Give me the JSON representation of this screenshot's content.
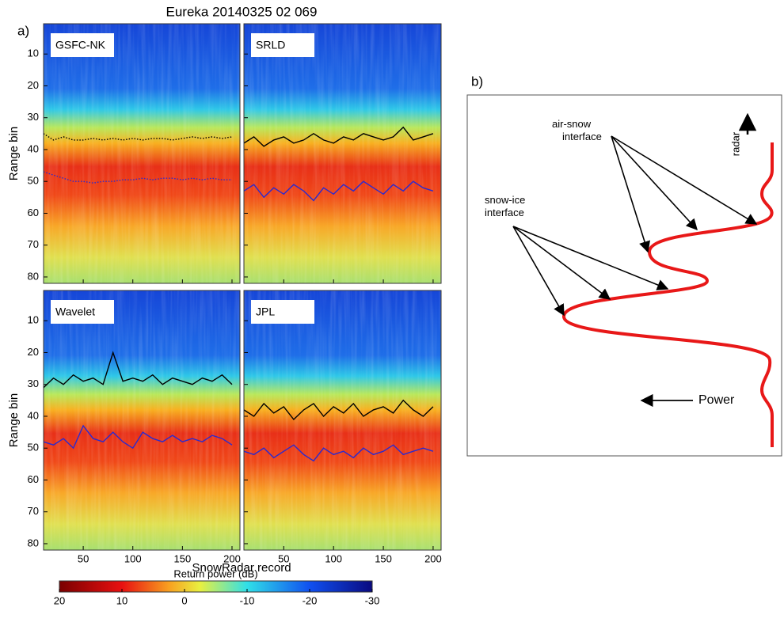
{
  "title": "Eureka 20140325 02 069",
  "panel_a_label": "a)",
  "panel_b_label": "b)",
  "xlabel": "SnowRadar record",
  "chart_data": [
    {
      "type": "heatmap",
      "label": "GSFC-NK",
      "ylabel": "Range bin",
      "show_xticklabels": false,
      "xlim": [
        10,
        208
      ],
      "ylim": [
        0.5,
        82
      ],
      "xticks": [
        50,
        100,
        150,
        200
      ],
      "yticks": [
        10,
        20,
        30,
        40,
        50,
        60,
        70,
        80
      ],
      "x": [
        10,
        20,
        30,
        40,
        50,
        60,
        70,
        80,
        90,
        100,
        110,
        120,
        130,
        140,
        150,
        160,
        170,
        180,
        190,
        200
      ],
      "series": [
        {
          "color": "#000000",
          "style": "dotted",
          "values": [
            35,
            37,
            36,
            37,
            37,
            36.5,
            37,
            36.5,
            37,
            36.5,
            37,
            36.5,
            36.5,
            37,
            36.5,
            36,
            36.5,
            36,
            36.5,
            36
          ]
        },
        {
          "color": "#2a2ad0",
          "style": "dotted",
          "values": [
            47,
            48,
            49,
            50,
            50,
            50.5,
            50,
            50,
            49.5,
            49.5,
            49,
            49.5,
            49,
            49,
            49.5,
            49,
            49.5,
            49,
            49.5,
            49.5
          ]
        }
      ]
    },
    {
      "type": "heatmap",
      "label": "SRLD",
      "show_xticklabels": false,
      "xlim": [
        10,
        208
      ],
      "ylim": [
        0.5,
        82
      ],
      "xticks": [
        50,
        100,
        150,
        200
      ],
      "yticks": [
        10,
        20,
        30,
        40,
        50,
        60,
        70,
        80
      ],
      "x": [
        10,
        20,
        30,
        40,
        50,
        60,
        70,
        80,
        90,
        100,
        110,
        120,
        130,
        140,
        150,
        160,
        170,
        180,
        190,
        200
      ],
      "series": [
        {
          "color": "#000000",
          "style": "solid",
          "values": [
            38,
            36,
            39,
            37,
            36,
            38,
            37,
            35,
            37,
            38,
            36,
            37,
            35,
            36,
            37,
            36,
            33,
            37,
            36,
            35
          ]
        },
        {
          "color": "#2a2ad0",
          "style": "solid",
          "values": [
            53,
            51,
            55,
            52,
            54,
            51,
            53,
            56,
            52,
            54,
            51,
            53,
            50,
            52,
            54,
            51,
            53,
            50,
            52,
            53
          ]
        }
      ]
    },
    {
      "type": "heatmap",
      "label": "Wavelet",
      "ylabel": "Range bin",
      "show_xticklabels": true,
      "xlim": [
        10,
        208
      ],
      "ylim": [
        0.5,
        82
      ],
      "xticks": [
        50,
        100,
        150,
        200
      ],
      "yticks": [
        10,
        20,
        30,
        40,
        50,
        60,
        70,
        80
      ],
      "x": [
        10,
        20,
        30,
        40,
        50,
        60,
        70,
        80,
        90,
        100,
        110,
        120,
        130,
        140,
        150,
        160,
        170,
        180,
        190,
        200
      ],
      "series": [
        {
          "color": "#000000",
          "style": "solid",
          "values": [
            31,
            28,
            30,
            27,
            29,
            28,
            30,
            20,
            29,
            28,
            29,
            27,
            30,
            28,
            29,
            30,
            28,
            29,
            27,
            30
          ]
        },
        {
          "color": "#2a2ad0",
          "style": "solid",
          "values": [
            48,
            49,
            47,
            50,
            43,
            47,
            48,
            45,
            48,
            50,
            45,
            47,
            48,
            46,
            48,
            47,
            48,
            46,
            47,
            49
          ]
        }
      ]
    },
    {
      "type": "heatmap",
      "label": "JPL",
      "show_xticklabels": true,
      "xlim": [
        10,
        208
      ],
      "ylim": [
        0.5,
        82
      ],
      "xticks": [
        50,
        100,
        150,
        200
      ],
      "yticks": [
        10,
        20,
        30,
        40,
        50,
        60,
        70,
        80
      ],
      "x": [
        10,
        20,
        30,
        40,
        50,
        60,
        70,
        80,
        90,
        100,
        110,
        120,
        130,
        140,
        150,
        160,
        170,
        180,
        190,
        200
      ],
      "series": [
        {
          "color": "#000000",
          "style": "solid",
          "values": [
            38,
            40,
            36,
            39,
            37,
            41,
            38,
            36,
            40,
            37,
            39,
            36,
            40,
            38,
            37,
            39,
            35,
            38,
            40,
            37
          ]
        },
        {
          "color": "#2a2ad0",
          "style": "solid",
          "values": [
            51,
            52,
            50,
            53,
            51,
            49,
            52,
            54,
            50,
            52,
            51,
            53,
            50,
            52,
            51,
            49,
            52,
            51,
            50,
            51
          ]
        }
      ]
    },
    {
      "type": "colorbar",
      "label": "Return power (dB)",
      "xlim": [
        20,
        -30
      ],
      "xticks": [
        20,
        10,
        0,
        -10,
        -20,
        -30
      ]
    }
  ],
  "diagram": {
    "air_snow_label": [
      "air-snow",
      "interface"
    ],
    "snow_ice_label": [
      "snow-ice",
      "interface"
    ],
    "radar_label": "radar",
    "power_label": "Power"
  }
}
